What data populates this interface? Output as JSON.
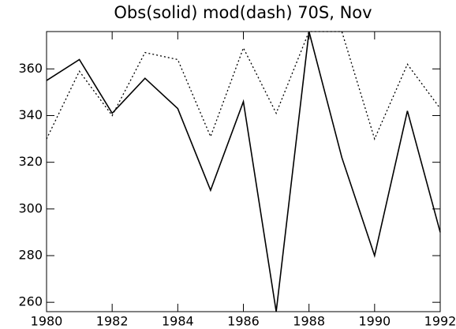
{
  "chart_data": {
    "type": "line",
    "title": "Obs(solid) mod(dash) 70S, Nov",
    "x": [
      1980,
      1981,
      1982,
      1983,
      1984,
      1985,
      1986,
      1987,
      1988,
      1989,
      1990,
      1991,
      1992
    ],
    "series": [
      {
        "color": "#000000",
        "dash": false,
        "values": [
          355,
          364,
          341,
          356,
          343,
          308,
          346,
          256,
          376,
          322,
          280,
          342,
          290
        ]
      },
      {
        "color": "#000000",
        "dash": true,
        "values": [
          330,
          359,
          340,
          367,
          364,
          331,
          369,
          341,
          376,
          376,
          330,
          362,
          343
        ]
      }
    ],
    "xlim": [
      1980,
      1992
    ],
    "xticks": [
      1980,
      1982,
      1984,
      1986,
      1988,
      1990,
      1992
    ],
    "ylim": [
      256,
      376
    ],
    "yticks": [
      260,
      280,
      300,
      320,
      340,
      360
    ]
  }
}
